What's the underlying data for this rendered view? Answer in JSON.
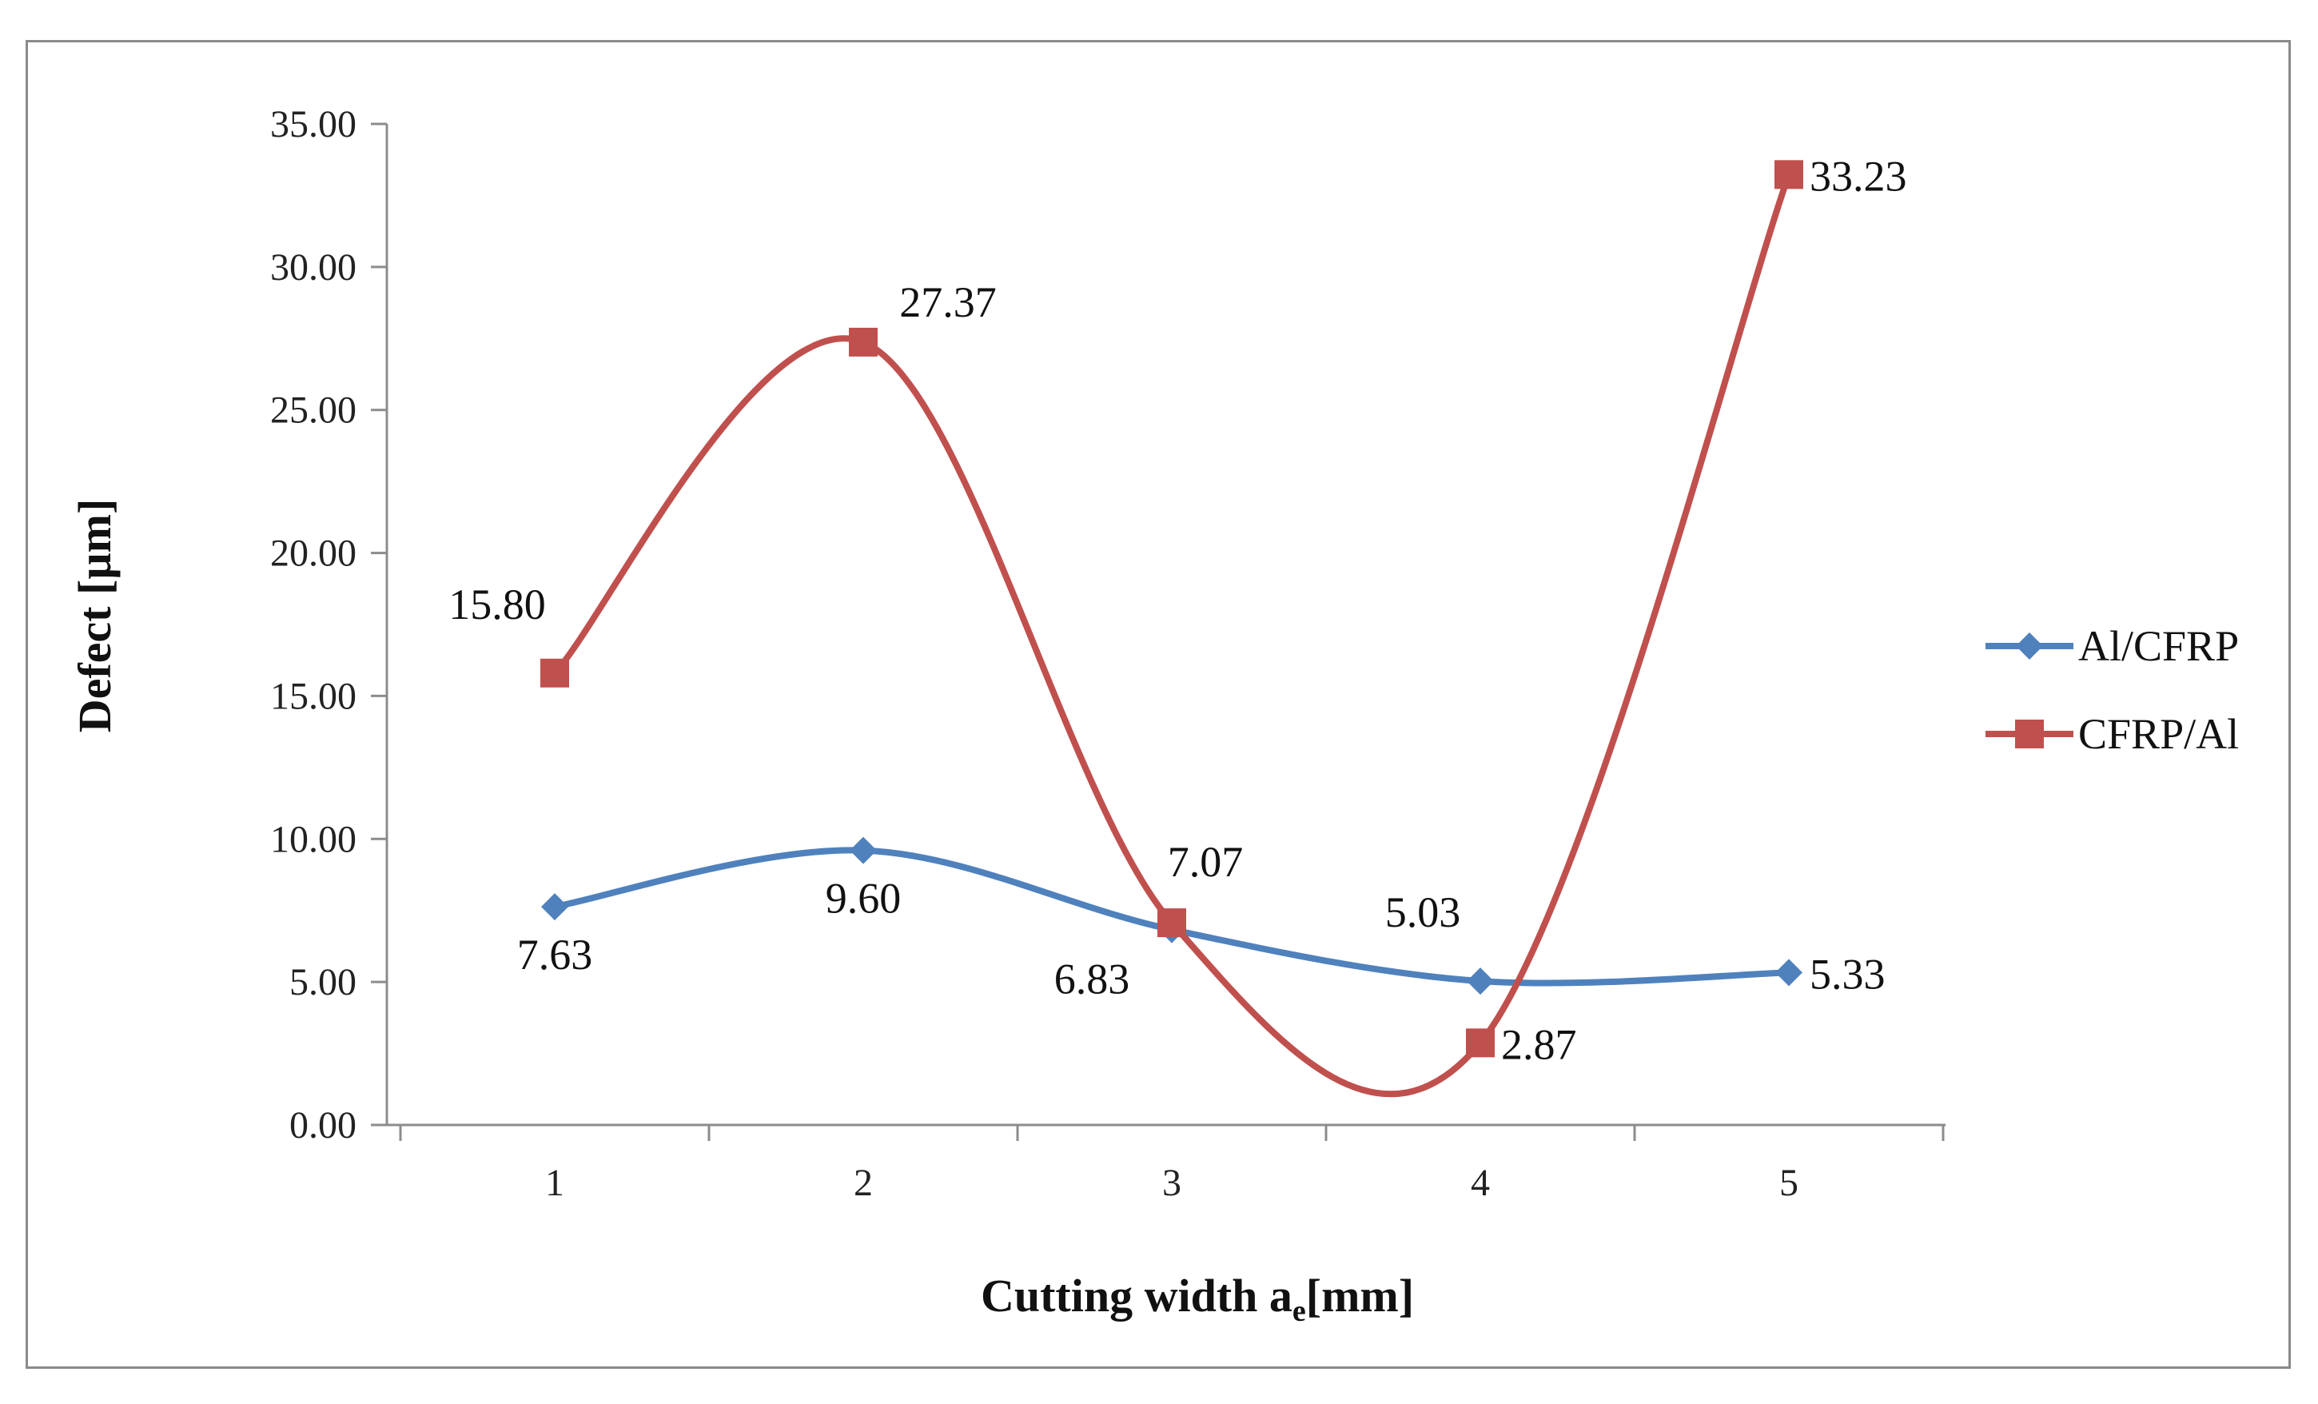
{
  "chart_data": {
    "type": "line",
    "title": "",
    "xlabel": "Cutting width a",
    "xlabel_subscript": "e",
    "xlabel_unit": "[mm]",
    "ylabel": "Defect [µm]",
    "x": [
      1,
      2,
      3,
      4,
      5
    ],
    "x_tick_labels": [
      "1",
      "2",
      "3",
      "4",
      "5"
    ],
    "ylim": [
      0,
      35
    ],
    "y_ticks": [
      0,
      5,
      10,
      15,
      20,
      25,
      30,
      35
    ],
    "y_tick_labels": [
      "0.00",
      "5.00",
      "10.00",
      "15.00",
      "20.00",
      "25.00",
      "30.00",
      "35.00"
    ],
    "grid": false,
    "smooth": true,
    "legend_position": "right",
    "series": [
      {
        "name": "Al/CFRP",
        "color": "#4f81bd",
        "marker": "diamond",
        "values": [
          7.63,
          9.6,
          6.83,
          5.03,
          5.33
        ],
        "labels": [
          "7.63",
          "9.60",
          "6.83",
          "5.03",
          "5.33"
        ],
        "label_positions": [
          "below",
          "below",
          "below-left",
          "above-left",
          "right"
        ]
      },
      {
        "name": "CFRP/Al",
        "color": "#c0504d",
        "marker": "square",
        "values": [
          15.8,
          27.37,
          7.07,
          2.87,
          33.23
        ],
        "labels": [
          "15.80",
          "27.37",
          "7.07",
          "2.87",
          "33.23"
        ],
        "label_positions": [
          "above-left",
          "above-right",
          "above",
          "right",
          "right"
        ]
      }
    ]
  }
}
